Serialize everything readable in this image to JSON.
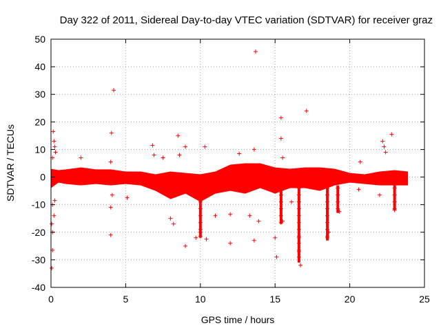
{
  "chart_data": {
    "type": "scatter",
    "title": "Day 322 of 2011, Sidereal Day-to-day VTEC variation (SDTVAR) for receiver graz",
    "xlabel": "GPS time / hours",
    "ylabel": "SDTVAR / TECUs",
    "xlim": [
      0,
      25
    ],
    "ylim": [
      -40,
      50
    ],
    "xticks": [
      0,
      5,
      10,
      15,
      20,
      25
    ],
    "yticks": [
      -40,
      -30,
      -20,
      -10,
      0,
      10,
      20,
      30,
      40,
      50
    ],
    "grid": true,
    "marker": "+",
    "color": "#ff0000",
    "series": [
      {
        "name": "SDTVAR",
        "dense_band": [
          {
            "x": 0.0,
            "low": -4,
            "high": 3
          },
          {
            "x": 0.5,
            "low": -2,
            "high": 2.5
          },
          {
            "x": 1.0,
            "low": -2.5,
            "high": 2.8
          },
          {
            "x": 2.0,
            "low": -3,
            "high": 3.5
          },
          {
            "x": 3.0,
            "low": -2.5,
            "high": 2.8
          },
          {
            "x": 4.0,
            "low": -3,
            "high": 2.8
          },
          {
            "x": 5.0,
            "low": -2.5,
            "high": 2
          },
          {
            "x": 6.0,
            "low": -3,
            "high": 2
          },
          {
            "x": 7.0,
            "low": -5,
            "high": 1
          },
          {
            "x": 8.0,
            "low": -8,
            "high": 2
          },
          {
            "x": 9.0,
            "low": -6,
            "high": 1.5
          },
          {
            "x": 10.0,
            "low": -9,
            "high": 1
          },
          {
            "x": 11.0,
            "low": -6,
            "high": 2
          },
          {
            "x": 12.0,
            "low": -5,
            "high": 4.5
          },
          {
            "x": 13.0,
            "low": -6,
            "high": 5
          },
          {
            "x": 14.0,
            "low": -4,
            "high": 5
          },
          {
            "x": 15.0,
            "low": -6,
            "high": 3.5
          },
          {
            "x": 16.0,
            "low": -4,
            "high": 3
          },
          {
            "x": 17.0,
            "low": -4,
            "high": 3.5
          },
          {
            "x": 18.0,
            "low": -5,
            "high": 3.5
          },
          {
            "x": 19.0,
            "low": -3,
            "high": 3
          },
          {
            "x": 20.0,
            "low": -2,
            "high": 1.5
          },
          {
            "x": 21.0,
            "low": -2.5,
            "high": 1
          },
          {
            "x": 22.0,
            "low": -3,
            "high": 2
          },
          {
            "x": 23.0,
            "low": -3,
            "high": 2.5
          },
          {
            "x": 23.9,
            "low": -3,
            "high": 2
          }
        ],
        "points": [
          {
            "x": 0.05,
            "y": -33
          },
          {
            "x": 0.1,
            "y": -26.5
          },
          {
            "x": 0.1,
            "y": -20
          },
          {
            "x": 0.05,
            "y": -17
          },
          {
            "x": 0.2,
            "y": -14
          },
          {
            "x": 0.1,
            "y": -10
          },
          {
            "x": 0.25,
            "y": -8.5
          },
          {
            "x": 0.15,
            "y": 16.5
          },
          {
            "x": 0.2,
            "y": 13
          },
          {
            "x": 0.25,
            "y": 11
          },
          {
            "x": 0.3,
            "y": 9
          },
          {
            "x": 0.1,
            "y": 7
          },
          {
            "x": 2.0,
            "y": 7
          },
          {
            "x": 4.0,
            "y": 5.5
          },
          {
            "x": 4.05,
            "y": 16
          },
          {
            "x": 4.2,
            "y": 31.5
          },
          {
            "x": 4.0,
            "y": -21
          },
          {
            "x": 4.0,
            "y": -11
          },
          {
            "x": 4.1,
            "y": -6.5
          },
          {
            "x": 5.1,
            "y": -7.5
          },
          {
            "x": 6.8,
            "y": 11.5
          },
          {
            "x": 6.9,
            "y": 8
          },
          {
            "x": 7.5,
            "y": 7
          },
          {
            "x": 8.0,
            "y": -15
          },
          {
            "x": 8.2,
            "y": -17
          },
          {
            "x": 8.5,
            "y": 15
          },
          {
            "x": 8.6,
            "y": 8
          },
          {
            "x": 9.0,
            "y": 11
          },
          {
            "x": 9.0,
            "y": -25
          },
          {
            "x": 9.7,
            "y": -22
          },
          {
            "x": 10.0,
            "y": -20
          },
          {
            "x": 10.3,
            "y": 11
          },
          {
            "x": 10.4,
            "y": -22.5
          },
          {
            "x": 11.0,
            "y": -14
          },
          {
            "x": 12.0,
            "y": -13.5
          },
          {
            "x": 12.0,
            "y": -24
          },
          {
            "x": 12.6,
            "y": 8.5
          },
          {
            "x": 13.3,
            "y": -14
          },
          {
            "x": 13.6,
            "y": 10
          },
          {
            "x": 13.6,
            "y": -23
          },
          {
            "x": 13.7,
            "y": 45.5
          },
          {
            "x": 13.9,
            "y": -16
          },
          {
            "x": 15.0,
            "y": -22
          },
          {
            "x": 15.1,
            "y": -29
          },
          {
            "x": 15.4,
            "y": 21.5
          },
          {
            "x": 15.4,
            "y": 14
          },
          {
            "x": 15.5,
            "y": 7
          },
          {
            "x": 15.5,
            "y": -16
          },
          {
            "x": 16.1,
            "y": -9
          },
          {
            "x": 16.6,
            "y": -27
          },
          {
            "x": 16.7,
            "y": -32
          },
          {
            "x": 16.6,
            "y": -22
          },
          {
            "x": 17.1,
            "y": 24
          },
          {
            "x": 18.5,
            "y": -22
          },
          {
            "x": 18.6,
            "y": -20
          },
          {
            "x": 19.3,
            "y": -12.5
          },
          {
            "x": 20.7,
            "y": 5.5
          },
          {
            "x": 20.6,
            "y": -4.5
          },
          {
            "x": 22.2,
            "y": 13
          },
          {
            "x": 22.3,
            "y": 11
          },
          {
            "x": 22.4,
            "y": 9
          },
          {
            "x": 22.0,
            "y": -6.5
          },
          {
            "x": 22.8,
            "y": 15.5
          },
          {
            "x": 23.0,
            "y": -12
          }
        ],
        "dips": [
          {
            "x": 10.0,
            "min": -22
          },
          {
            "x": 15.4,
            "min": -17
          },
          {
            "x": 16.6,
            "min": -31
          },
          {
            "x": 18.5,
            "min": -23
          },
          {
            "x": 19.2,
            "min": -13
          },
          {
            "x": 23.0,
            "min": -12
          }
        ]
      }
    ]
  }
}
